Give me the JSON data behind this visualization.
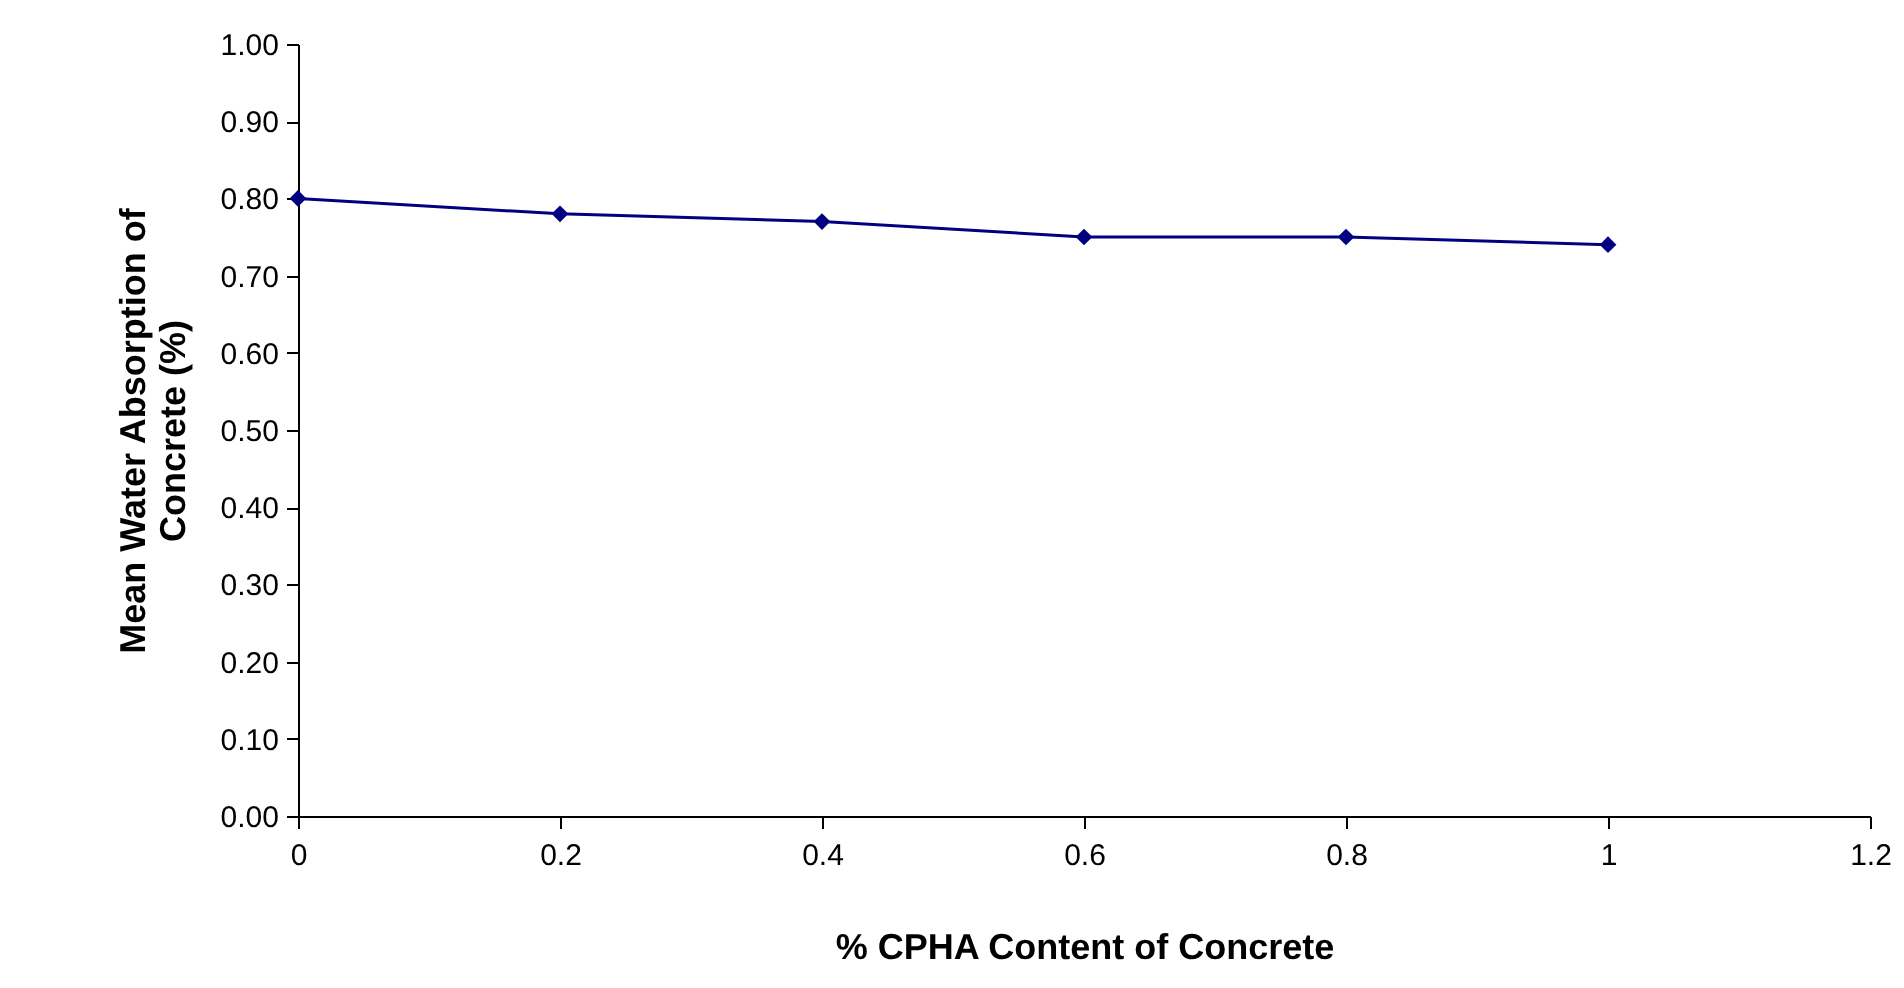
{
  "chart_data": {
    "type": "line",
    "xlabel": "% CPHA Content of Concrete",
    "ylabel": "Mean Water Absorption of Concrete (%)",
    "x": [
      0,
      0.2,
      0.4,
      0.6,
      0.8,
      1
    ],
    "series": [
      {
        "color": "#000080",
        "values": [
          0.8,
          0.78,
          0.77,
          0.75,
          0.75,
          0.74
        ]
      }
    ],
    "xlim": [
      0,
      1.2
    ],
    "xticks": [
      0,
      0.2,
      0.4,
      0.6,
      0.8,
      1,
      1.2
    ],
    "ylim": [
      0,
      1
    ],
    "yticks": [
      {
        "value": 0,
        "label": "0.00"
      },
      {
        "value": 0.1,
        "label": "0.10"
      },
      {
        "value": 0.2,
        "label": "0.20"
      },
      {
        "value": 0.3,
        "label": "0.30"
      },
      {
        "value": 0.4,
        "label": "0.40"
      },
      {
        "value": 0.5,
        "label": "0.50"
      },
      {
        "value": 0.6,
        "label": "0.60"
      },
      {
        "value": 0.7,
        "label": "0.70"
      },
      {
        "value": 0.8,
        "label": "0.80"
      },
      {
        "value": 0.9,
        "label": "0.90"
      },
      {
        "value": 1,
        "label": "1.00"
      }
    ],
    "grid": false,
    "marker": "diamond",
    "line_style": "solid"
  }
}
